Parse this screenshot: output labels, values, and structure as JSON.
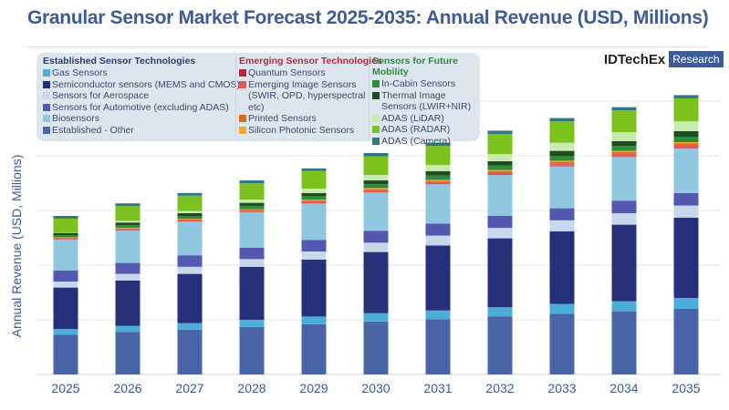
{
  "chart_data": {
    "type": "bar",
    "stacked": true,
    "title": "Granular Sensor Market Forecast 2025-2035: Annual Revenue (USD, Millions)",
    "xlabel": "",
    "ylabel": "Annual Revenue (USD, Millions)",
    "y_tick_labels_shown": false,
    "grid": true,
    "legend_placement": "top-left",
    "ylim": [
      0,
      5
    ],
    "categories": [
      "2025",
      "2026",
      "2027",
      "2028",
      "2029",
      "2030",
      "2031",
      "2032",
      "2033",
      "2034",
      "2035"
    ],
    "groups": [
      {
        "name": "Established Sensor Technologies",
        "color": "#2c3e70"
      },
      {
        "name": "Emerging Sensor Technologies",
        "color": "#c0243c"
      },
      {
        "name": "Sensors for Future Mobility",
        "color": "#2e8b3a"
      }
    ],
    "series": [
      {
        "name": "Established - Other",
        "group": 0,
        "color": "#4a64a8",
        "values": [
          0.73,
          0.78,
          0.82,
          0.87,
          0.92,
          0.97,
          1.01,
          1.06,
          1.11,
          1.15,
          1.2
        ]
      },
      {
        "name": "Gas Sensors",
        "group": 0,
        "color": "#4aaed8",
        "values": [
          0.1,
          0.11,
          0.12,
          0.13,
          0.14,
          0.15,
          0.16,
          0.17,
          0.18,
          0.19,
          0.2
        ]
      },
      {
        "name": "Semiconductor sensors (MEMS and CMOS)",
        "group": 0,
        "color": "#27307a",
        "values": [
          0.76,
          0.83,
          0.9,
          0.97,
          1.04,
          1.12,
          1.19,
          1.26,
          1.33,
          1.4,
          1.47
        ]
      },
      {
        "name": "Sensors for Aerospace",
        "group": 0,
        "color": "#c8d8ec",
        "values": [
          0.11,
          0.12,
          0.13,
          0.14,
          0.15,
          0.17,
          0.18,
          0.19,
          0.2,
          0.21,
          0.22
        ]
      },
      {
        "name": "Sensors for Automotive (excluding ADAS)",
        "group": 0,
        "color": "#5558b0",
        "values": [
          0.2,
          0.2,
          0.21,
          0.21,
          0.21,
          0.22,
          0.22,
          0.22,
          0.22,
          0.23,
          0.23
        ]
      },
      {
        "name": "Biosensors",
        "group": 0,
        "color": "#8fc8e0",
        "values": [
          0.57,
          0.6,
          0.62,
          0.65,
          0.67,
          0.7,
          0.72,
          0.75,
          0.77,
          0.8,
          0.82
        ]
      },
      {
        "name": "Quantum Sensors",
        "group": 1,
        "color": "#c0243c",
        "values": [
          0.01,
          0.01,
          0.01,
          0.01,
          0.01,
          0.01,
          0.01,
          0.01,
          0.01,
          0.01,
          0.01
        ]
      },
      {
        "name": "Emerging Image Sensors (SWIR, OPD, hyperspectral etc)",
        "group": 1,
        "color": "#e85858",
        "values": [
          0.01,
          0.01,
          0.02,
          0.02,
          0.03,
          0.03,
          0.03,
          0.04,
          0.04,
          0.05,
          0.05
        ]
      },
      {
        "name": "Printed Sensors",
        "group": 1,
        "color": "#e06a1c",
        "values": [
          0.01,
          0.01,
          0.01,
          0.01,
          0.02,
          0.02,
          0.02,
          0.02,
          0.03,
          0.03,
          0.03
        ]
      },
      {
        "name": "Silicon Photonic Sensors",
        "group": 1,
        "color": "#f0a830",
        "values": [
          0.01,
          0.01,
          0.01,
          0.01,
          0.01,
          0.02,
          0.02,
          0.02,
          0.02,
          0.02,
          0.02
        ]
      },
      {
        "name": "In-Cabin Sensors",
        "group": 2,
        "color": "#2e8b3a",
        "values": [
          0.04,
          0.05,
          0.05,
          0.06,
          0.06,
          0.07,
          0.08,
          0.08,
          0.09,
          0.09,
          0.1
        ]
      },
      {
        "name": "Thermal Image Sensors (LWIR+NIR)",
        "group": 2,
        "color": "#1f4d1f",
        "values": [
          0.04,
          0.05,
          0.05,
          0.06,
          0.06,
          0.07,
          0.08,
          0.08,
          0.09,
          0.09,
          0.1
        ]
      },
      {
        "name": "ADAS (LiDAR)",
        "group": 2,
        "color": "#c8ecb0",
        "values": [
          0.01,
          0.03,
          0.04,
          0.06,
          0.08,
          0.1,
          0.11,
          0.13,
          0.15,
          0.16,
          0.18
        ]
      },
      {
        "name": "ADAS (RADAR)",
        "group": 2,
        "color": "#7cc21e",
        "values": [
          0.25,
          0.27,
          0.28,
          0.3,
          0.32,
          0.34,
          0.35,
          0.37,
          0.39,
          0.4,
          0.42
        ]
      },
      {
        "name": "ADAS (Camera)",
        "group": 2,
        "color": "#2e7a80",
        "values": [
          0.05,
          0.05,
          0.05,
          0.05,
          0.05,
          0.06,
          0.06,
          0.06,
          0.06,
          0.06,
          0.06
        ]
      }
    ],
    "legend_order": [
      [
        1,
        2,
        3,
        4,
        5,
        0
      ],
      [
        6,
        7,
        8,
        9
      ],
      [
        10,
        11,
        12,
        13,
        14
      ]
    ]
  },
  "logo": {
    "name": "IDTechEx",
    "tag": "Research"
  }
}
